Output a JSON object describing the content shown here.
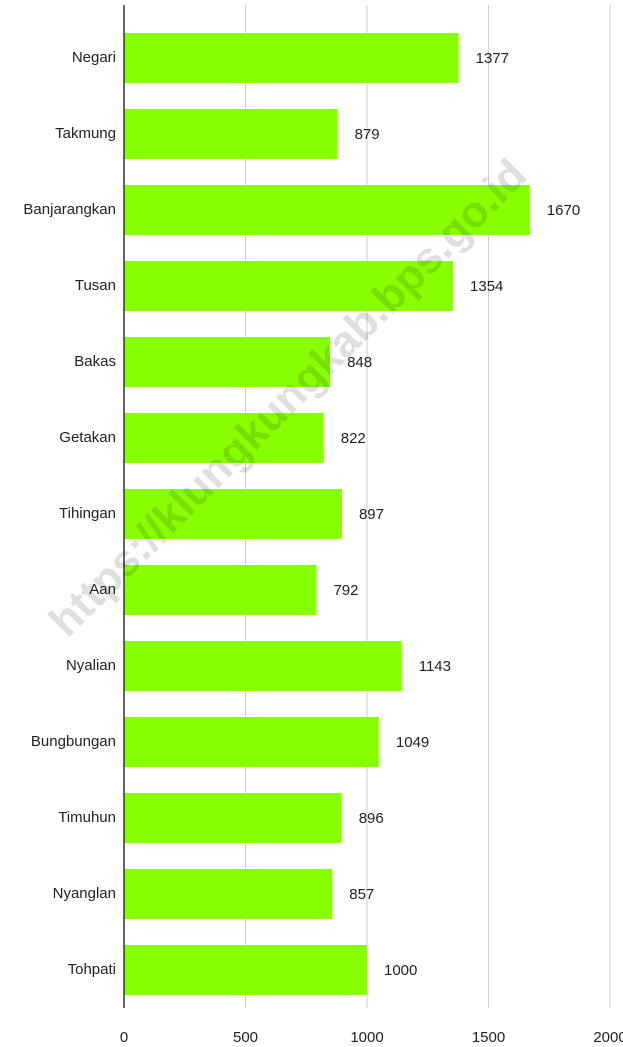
{
  "chart_data": {
    "type": "bar",
    "orientation": "horizontal",
    "categories": [
      "Negari",
      "Takmung",
      "Banjarangkan",
      "Tusan",
      "Bakas",
      "Getakan",
      "Tihingan",
      "Aan",
      "Nyalian",
      "Bungbungan",
      "Timuhun",
      "Nyanglan",
      "Tohpati"
    ],
    "values": [
      1377,
      879,
      1670,
      1354,
      848,
      822,
      897,
      792,
      1143,
      1049,
      896,
      857,
      1000
    ],
    "color": "#88ff00",
    "xlim": [
      0,
      2000
    ],
    "xticks": [
      0,
      500,
      1000,
      1500,
      2000
    ],
    "grid": true,
    "watermark": "https://klungkungkab.bps.go.id"
  }
}
